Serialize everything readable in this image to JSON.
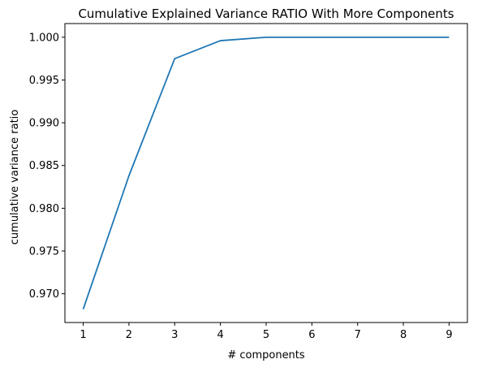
{
  "chart_data": {
    "type": "line",
    "title": "Cumulative Explained Variance RATIO With More Components",
    "xlabel": "# components",
    "ylabel": "cumulative variance ratio",
    "x": [
      1,
      2,
      3,
      4,
      5,
      6,
      7,
      8,
      9
    ],
    "series": [
      {
        "values": [
          0.9682,
          0.9838,
          0.9975,
          0.9996,
          1.0,
          1.0,
          1.0,
          1.0,
          1.0
        ],
        "color": "#1f77b4"
      }
    ],
    "xlim": [
      0.6,
      9.4
    ],
    "ylim": [
      0.96664,
      1.0016
    ],
    "xticks": [
      1,
      2,
      3,
      4,
      5,
      6,
      7,
      8,
      9
    ],
    "yticks": [
      0.97,
      0.975,
      0.98,
      0.985,
      0.99,
      0.995,
      1.0
    ],
    "ytick_labels": [
      "0.970",
      "0.975",
      "0.980",
      "0.985",
      "0.990",
      "0.995",
      "1.000"
    ],
    "grid": false,
    "legend": false
  }
}
